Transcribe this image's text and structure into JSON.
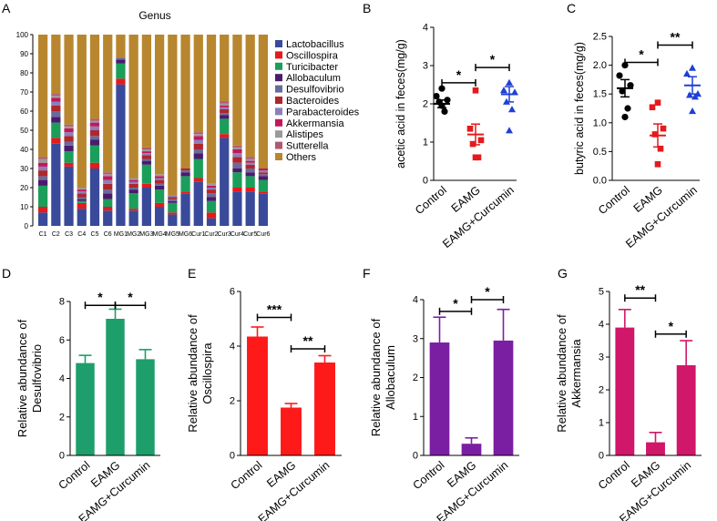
{
  "chart_data": [
    {
      "panel": "A",
      "type": "bar",
      "stacked": true,
      "title": "Genus",
      "xlabel": "",
      "ylabel": "",
      "ylim": [
        0,
        100
      ],
      "yticks": [
        0,
        10,
        20,
        30,
        40,
        50,
        60,
        70,
        80,
        90,
        100
      ],
      "categories": [
        "C1",
        "C2",
        "C3",
        "C4",
        "C5",
        "C6",
        "MG1",
        "MG2",
        "MG3",
        "MG4",
        "MG5",
        "MG6",
        "Cur1",
        "Cur2",
        "Cur3",
        "Cur4",
        "Cur5",
        "Cur6"
      ],
      "series": [
        {
          "name": "Lactobacillus",
          "color": "#3a4a9a",
          "values": [
            7,
            43,
            31,
            9,
            30,
            8,
            74,
            8,
            20,
            10,
            6,
            17,
            23,
            4,
            46,
            18,
            18,
            17
          ]
        },
        {
          "name": "Oscillospira",
          "color": "#e41a1c",
          "values": [
            3,
            3,
            2,
            3,
            3,
            2,
            3,
            1,
            2,
            2,
            1,
            1,
            2,
            3,
            2,
            2,
            2,
            1
          ]
        },
        {
          "name": "Turicibacter",
          "color": "#1b9e5a",
          "values": [
            11,
            8,
            6,
            1,
            9,
            4,
            8,
            8,
            10,
            7,
            5,
            8,
            10,
            6,
            8,
            8,
            6,
            6
          ]
        },
        {
          "name": "Allobaculum",
          "color": "#4b1a6e",
          "values": [
            3,
            3,
            3,
            1,
            3,
            3,
            2,
            2,
            2,
            2,
            1,
            2,
            3,
            2,
            2,
            2,
            2,
            2
          ]
        },
        {
          "name": "Desulfovibrio",
          "color": "#6a6a9a",
          "values": [
            2,
            3,
            2,
            1,
            2,
            2,
            1,
            1,
            1,
            1,
            1,
            1,
            2,
            2,
            1,
            3,
            2,
            1
          ]
        },
        {
          "name": "Bacteroides",
          "color": "#b0262a",
          "values": [
            3,
            3,
            3,
            2,
            3,
            3,
            0,
            2,
            2,
            2,
            1,
            1,
            3,
            2,
            2,
            3,
            2,
            1
          ]
        },
        {
          "name": "Parabacteroides",
          "color": "#8a80bb",
          "values": [
            2,
            2,
            2,
            1,
            2,
            2,
            0,
            1,
            1,
            1,
            1,
            0,
            2,
            1,
            1,
            2,
            1,
            1
          ]
        },
        {
          "name": "Akkermansia",
          "color": "#c2185b",
          "values": [
            2,
            2,
            2,
            1,
            2,
            2,
            0,
            1,
            1,
            1,
            0,
            0,
            2,
            1,
            1,
            2,
            1,
            1
          ]
        },
        {
          "name": "Alistipes",
          "color": "#9a9a9a",
          "values": [
            2,
            1,
            1,
            1,
            1,
            1,
            0,
            1,
            1,
            1,
            0,
            0,
            1,
            1,
            1,
            1,
            1,
            0
          ]
        },
        {
          "name": "Sutterella",
          "color": "#b05a70",
          "values": [
            1,
            1,
            1,
            0,
            1,
            1,
            0,
            0,
            1,
            0,
            0,
            0,
            1,
            0,
            1,
            1,
            1,
            0
          ]
        },
        {
          "name": "Others",
          "color": "#b8862e",
          "values": [
            64,
            31,
            47,
            80,
            44,
            72,
            12,
            75,
            59,
            73,
            84,
            70,
            51,
            78,
            35,
            58,
            64,
            70
          ]
        }
      ],
      "legend_position": "right"
    },
    {
      "panel": "B",
      "type": "scatter",
      "ylabel": "acetic acid in feces(mg/g)",
      "ylim": [
        0,
        4
      ],
      "yticks": [
        0,
        1,
        2,
        3,
        4
      ],
      "groups": [
        {
          "name": "Control",
          "color": "#000000",
          "marker": "circle",
          "points": [
            2.4,
            2.2,
            2.1,
            2.05,
            1.8,
            1.95
          ],
          "mean": 2.0,
          "sem": 0.1
        },
        {
          "name": "EAMG",
          "color": "#e41a1c",
          "marker": "square",
          "points": [
            2.35,
            1.35,
            1.05,
            0.95,
            0.6,
            0.6
          ],
          "mean": 1.2,
          "sem": 0.27
        },
        {
          "name": "EAMG+Curcumin",
          "color": "#1f3fd6",
          "marker": "triangle",
          "points": [
            2.55,
            2.35,
            2.3,
            2.05,
            1.85,
            1.3
          ],
          "mean": 2.25,
          "sem": 0.2
        }
      ],
      "significance": [
        {
          "from": "Control",
          "to": "EAMG",
          "label": "*",
          "y": 2.55
        },
        {
          "from": "EAMG",
          "to": "EAMG+Curcumin",
          "label": "*",
          "y": 2.95
        }
      ]
    },
    {
      "panel": "C",
      "type": "scatter",
      "ylabel": "butyric acid in feces(mg/g)",
      "ylim": [
        0,
        2.5
      ],
      "yticks": [
        0.0,
        0.5,
        1.0,
        1.5,
        2.0,
        2.5
      ],
      "groups": [
        {
          "name": "Control",
          "color": "#000000",
          "marker": "circle",
          "points": [
            2.0,
            1.82,
            1.65,
            1.55,
            1.25,
            1.1
          ],
          "mean": 1.6,
          "sem": 0.15
        },
        {
          "name": "EAMG",
          "color": "#e41a1c",
          "marker": "square",
          "points": [
            1.35,
            1.27,
            0.9,
            0.8,
            0.55,
            0.28
          ],
          "mean": 0.78,
          "sem": 0.2
        },
        {
          "name": "EAMG+Curcumin",
          "color": "#1f3fd6",
          "marker": "triangle",
          "points": [
            1.95,
            1.85,
            1.5,
            1.48,
            1.45,
            1.2
          ],
          "mean": 1.65,
          "sem": 0.15
        }
      ],
      "significance": [
        {
          "from": "Control",
          "to": "EAMG",
          "label": "*",
          "y": 2.05
        },
        {
          "from": "EAMG",
          "to": "EAMG+Curcumin",
          "label": "**",
          "y": 2.35
        }
      ]
    },
    {
      "panel": "D",
      "type": "bar",
      "ylabel": "Relative abundance of Desulfovibrio",
      "ylim": [
        0,
        8
      ],
      "yticks": [
        0,
        2,
        4,
        6,
        8
      ],
      "color": "#1e9e6a",
      "categories": [
        "Control",
        "EAMG",
        "EAMG+Curcumin"
      ],
      "values": [
        4.8,
        7.1,
        5.0
      ],
      "errors": [
        0.4,
        0.5,
        0.5
      ],
      "significance": [
        {
          "from": "Control",
          "to": "EAMG",
          "label": "*",
          "y": 7.8
        },
        {
          "from": "EAMG",
          "to": "EAMG+Curcumin",
          "label": "*",
          "y": 7.8
        }
      ]
    },
    {
      "panel": "E",
      "type": "bar",
      "ylabel": "Relative abundance of Oscillospira",
      "ylim": [
        0,
        6
      ],
      "yticks": [
        0,
        2,
        4,
        6
      ],
      "color": "#ff1a1a",
      "categories": [
        "Control",
        "EAMG",
        "EAMG+Curcumin"
      ],
      "values": [
        4.35,
        1.75,
        3.4
      ],
      "errors": [
        0.35,
        0.15,
        0.25
      ],
      "significance": [
        {
          "from": "Control",
          "to": "EAMG",
          "label": "***",
          "y": 5.05
        },
        {
          "from": "EAMG",
          "to": "EAMG+Curcumin",
          "label": "**",
          "y": 3.9
        }
      ]
    },
    {
      "panel": "F",
      "type": "bar",
      "ylabel": "Relative abundance of Allobaculum",
      "ylim": [
        0,
        4
      ],
      "yticks": [
        0,
        1,
        2,
        3,
        4
      ],
      "color": "#7b1fa2",
      "categories": [
        "Control",
        "EAMG",
        "EAMG+Curcumin"
      ],
      "values": [
        2.9,
        0.3,
        2.95
      ],
      "errors": [
        0.65,
        0.15,
        0.8
      ],
      "significance": [
        {
          "from": "Control",
          "to": "EAMG",
          "label": "*",
          "y": 3.7
        },
        {
          "from": "EAMG",
          "to": "EAMG+Curcumin",
          "label": "*",
          "y": 4.0
        }
      ]
    },
    {
      "panel": "G",
      "type": "bar",
      "ylabel": "Relative abundance of Akkermansia",
      "ylim": [
        0,
        5
      ],
      "yticks": [
        0,
        1,
        2,
        3,
        4,
        5
      ],
      "color": "#d0176a",
      "categories": [
        "Control",
        "EAMG",
        "EAMG+Curcumin"
      ],
      "values": [
        3.9,
        0.4,
        2.75
      ],
      "errors": [
        0.55,
        0.3,
        0.75
      ],
      "significance": [
        {
          "from": "Control",
          "to": "EAMG",
          "label": "**",
          "y": 4.8
        },
        {
          "from": "EAMG",
          "to": "EAMG+Curcumin",
          "label": "*",
          "y": 3.7
        }
      ]
    }
  ]
}
